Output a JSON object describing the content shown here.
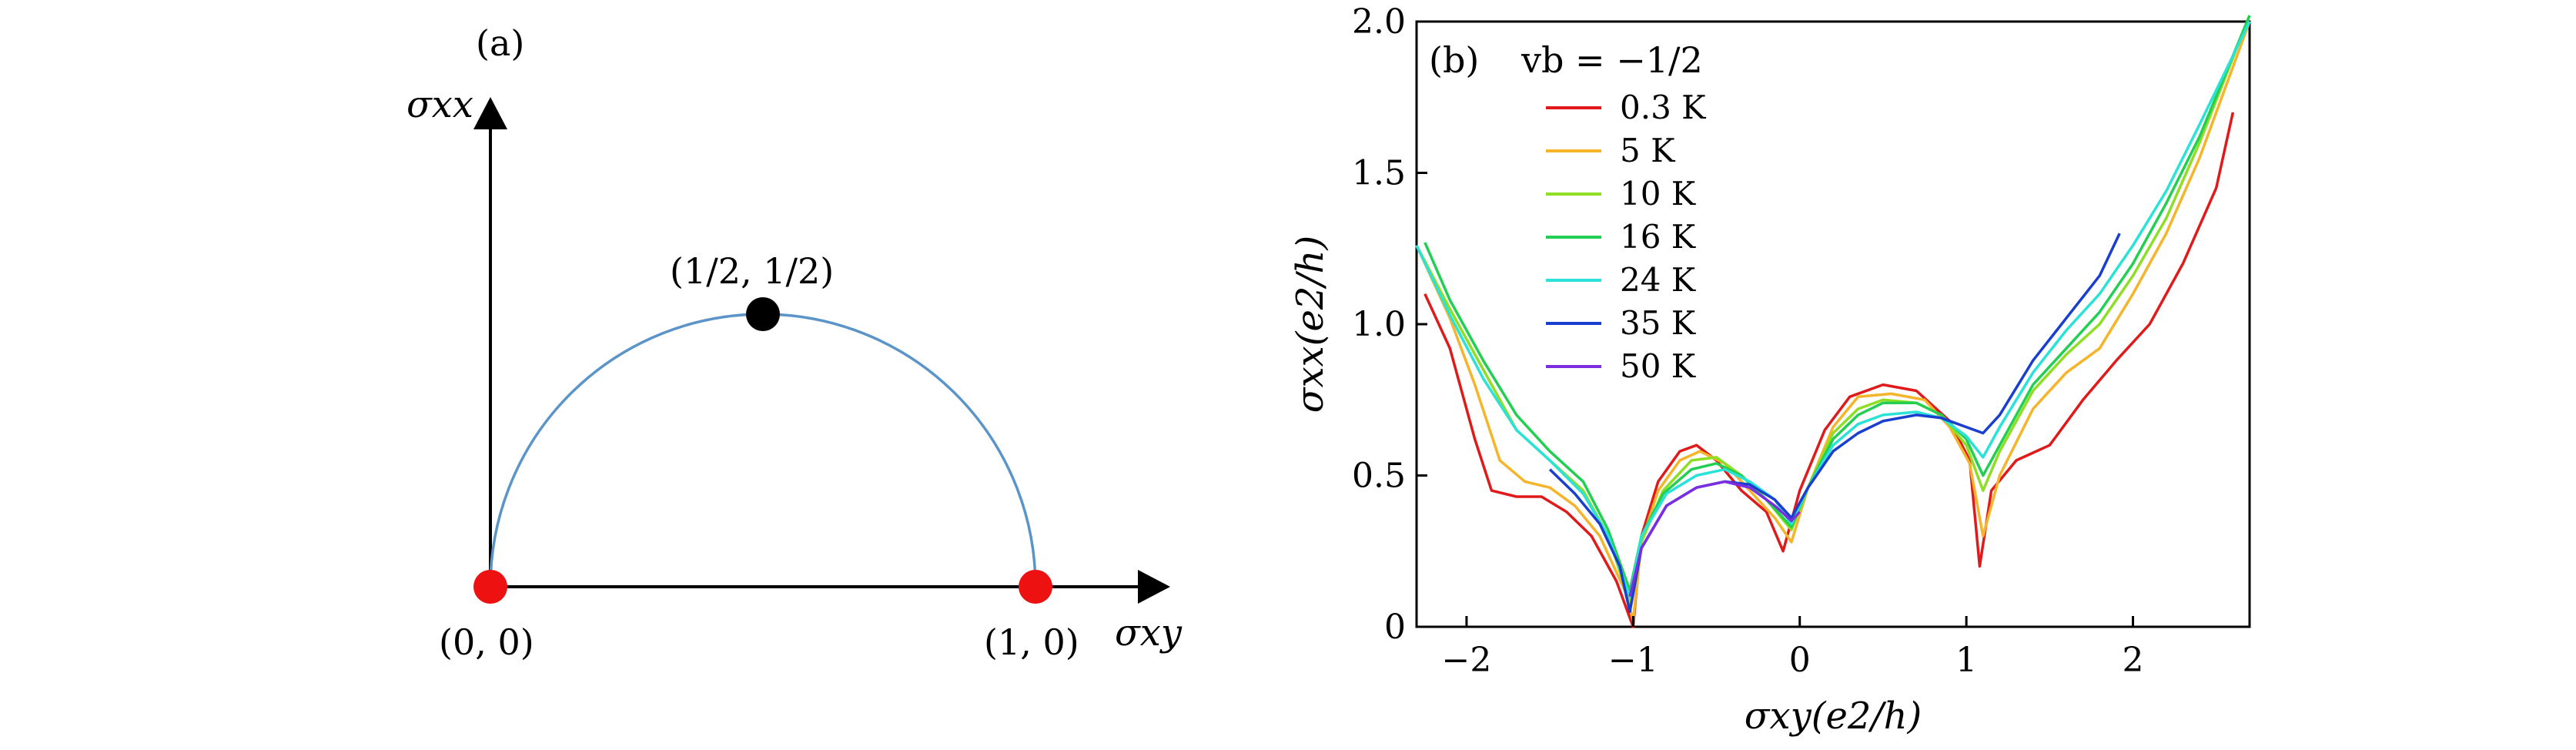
{
  "panel_a": {
    "label": "(a)",
    "y_axis_label": "σxx",
    "x_axis_label": "σxy",
    "points": [
      {
        "label": "(0, 0)",
        "x": 0,
        "y": 0,
        "color": "#ee1111"
      },
      {
        "label": "(1, 0)",
        "x": 1,
        "y": 0,
        "color": "#ee1111"
      },
      {
        "label": "(1/2, 1/2)",
        "x": 0.5,
        "y": 0.5,
        "color": "#000000"
      }
    ],
    "arc_color": "#5a94c8"
  },
  "panel_b": {
    "label": "(b)",
    "filling_label": "vb = −1/2",
    "x_tick_labels": [
      "−2",
      "−1",
      "0",
      "1",
      "2"
    ],
    "y_tick_labels": [
      "0",
      "0.5",
      "1.0",
      "1.5",
      "2.0"
    ]
  },
  "chart_data": {
    "type": "line",
    "xlabel": "σxy(e2/h)",
    "ylabel": "σxx(e2/h)",
    "xlim": [
      -2.3,
      2.7
    ],
    "ylim": [
      0,
      2.0
    ],
    "x_ticks": [
      -2,
      -1,
      0,
      1,
      2
    ],
    "y_ticks": [
      0,
      0.5,
      1.0,
      1.5,
      2.0
    ],
    "legend_position": "top-left",
    "grid": false,
    "series": [
      {
        "name": "0.3 K",
        "color": "#e01a1a",
        "points": [
          [
            -2.25,
            1.1
          ],
          [
            -2.1,
            0.92
          ],
          [
            -1.95,
            0.62
          ],
          [
            -1.85,
            0.45
          ],
          [
            -1.7,
            0.43
          ],
          [
            -1.55,
            0.43
          ],
          [
            -1.4,
            0.38
          ],
          [
            -1.25,
            0.3
          ],
          [
            -1.1,
            0.15
          ],
          [
            -1.0,
            0
          ],
          [
            -0.95,
            0.3
          ],
          [
            -0.85,
            0.48
          ],
          [
            -0.72,
            0.58
          ],
          [
            -0.62,
            0.6
          ],
          [
            -0.5,
            0.55
          ],
          [
            -0.35,
            0.45
          ],
          [
            -0.2,
            0.38
          ],
          [
            -0.1,
            0.25
          ],
          [
            0.0,
            0.45
          ],
          [
            0.15,
            0.65
          ],
          [
            0.3,
            0.76
          ],
          [
            0.5,
            0.8
          ],
          [
            0.7,
            0.78
          ],
          [
            0.9,
            0.68
          ],
          [
            1.02,
            0.55
          ],
          [
            1.08,
            0.2
          ],
          [
            1.15,
            0.45
          ],
          [
            1.3,
            0.55
          ],
          [
            1.5,
            0.6
          ],
          [
            1.7,
            0.75
          ],
          [
            1.9,
            0.88
          ],
          [
            2.1,
            1.0
          ],
          [
            2.3,
            1.2
          ],
          [
            2.5,
            1.45
          ],
          [
            2.6,
            1.7
          ]
        ]
      },
      {
        "name": "5 K",
        "color": "#f5b42a",
        "points": [
          [
            -2.3,
            1.26
          ],
          [
            -2.1,
            1.02
          ],
          [
            -1.95,
            0.8
          ],
          [
            -1.8,
            0.55
          ],
          [
            -1.65,
            0.48
          ],
          [
            -1.5,
            0.46
          ],
          [
            -1.35,
            0.4
          ],
          [
            -1.2,
            0.3
          ],
          [
            -1.05,
            0.12
          ],
          [
            -1.0,
            0.02
          ],
          [
            -0.95,
            0.28
          ],
          [
            -0.85,
            0.45
          ],
          [
            -0.72,
            0.55
          ],
          [
            -0.6,
            0.58
          ],
          [
            -0.45,
            0.54
          ],
          [
            -0.3,
            0.45
          ],
          [
            -0.15,
            0.36
          ],
          [
            -0.05,
            0.28
          ],
          [
            0.05,
            0.46
          ],
          [
            0.2,
            0.66
          ],
          [
            0.35,
            0.76
          ],
          [
            0.55,
            0.77
          ],
          [
            0.75,
            0.75
          ],
          [
            0.9,
            0.66
          ],
          [
            1.02,
            0.54
          ],
          [
            1.1,
            0.3
          ],
          [
            1.2,
            0.5
          ],
          [
            1.4,
            0.72
          ],
          [
            1.6,
            0.84
          ],
          [
            1.8,
            0.92
          ],
          [
            2.0,
            1.1
          ],
          [
            2.2,
            1.3
          ],
          [
            2.4,
            1.55
          ],
          [
            2.6,
            1.85
          ],
          [
            2.7,
            2.0
          ]
        ]
      },
      {
        "name": "10 K",
        "color": "#8ede24",
        "points": [
          [
            -2.3,
            1.26
          ],
          [
            -2.1,
            1.05
          ],
          [
            -1.9,
            0.85
          ],
          [
            -1.7,
            0.65
          ],
          [
            -1.5,
            0.55
          ],
          [
            -1.3,
            0.45
          ],
          [
            -1.15,
            0.3
          ],
          [
            -1.02,
            0.08
          ],
          [
            -0.95,
            0.28
          ],
          [
            -0.82,
            0.45
          ],
          [
            -0.65,
            0.55
          ],
          [
            -0.5,
            0.56
          ],
          [
            -0.35,
            0.5
          ],
          [
            -0.2,
            0.42
          ],
          [
            -0.05,
            0.32
          ],
          [
            0.05,
            0.46
          ],
          [
            0.2,
            0.64
          ],
          [
            0.35,
            0.72
          ],
          [
            0.5,
            0.75
          ],
          [
            0.7,
            0.74
          ],
          [
            0.85,
            0.7
          ],
          [
            1.0,
            0.6
          ],
          [
            1.1,
            0.45
          ],
          [
            1.2,
            0.58
          ],
          [
            1.4,
            0.78
          ],
          [
            1.6,
            0.9
          ],
          [
            1.8,
            1.0
          ],
          [
            2.0,
            1.16
          ],
          [
            2.2,
            1.35
          ],
          [
            2.4,
            1.6
          ],
          [
            2.7,
            2.02
          ]
        ]
      },
      {
        "name": "16 K",
        "color": "#22cf52",
        "points": [
          [
            -2.25,
            1.27
          ],
          [
            -2.1,
            1.08
          ],
          [
            -1.9,
            0.88
          ],
          [
            -1.7,
            0.7
          ],
          [
            -1.5,
            0.58
          ],
          [
            -1.3,
            0.48
          ],
          [
            -1.15,
            0.32
          ],
          [
            -1.02,
            0.12
          ],
          [
            -0.95,
            0.3
          ],
          [
            -0.82,
            0.44
          ],
          [
            -0.65,
            0.52
          ],
          [
            -0.5,
            0.54
          ],
          [
            -0.35,
            0.5
          ],
          [
            -0.2,
            0.42
          ],
          [
            -0.05,
            0.33
          ],
          [
            0.05,
            0.46
          ],
          [
            0.2,
            0.62
          ],
          [
            0.35,
            0.7
          ],
          [
            0.5,
            0.74
          ],
          [
            0.7,
            0.74
          ],
          [
            0.85,
            0.7
          ],
          [
            1.0,
            0.62
          ],
          [
            1.1,
            0.5
          ],
          [
            1.2,
            0.6
          ],
          [
            1.4,
            0.8
          ],
          [
            1.6,
            0.92
          ],
          [
            1.8,
            1.04
          ],
          [
            2.0,
            1.2
          ],
          [
            2.2,
            1.4
          ],
          [
            2.4,
            1.62
          ],
          [
            2.7,
            2.02
          ]
        ]
      },
      {
        "name": "24 K",
        "color": "#2ae2d8",
        "points": [
          [
            -2.3,
            1.26
          ],
          [
            -2.1,
            1.03
          ],
          [
            -1.9,
            0.82
          ],
          [
            -1.7,
            0.65
          ],
          [
            -1.5,
            0.55
          ],
          [
            -1.3,
            0.44
          ],
          [
            -1.15,
            0.3
          ],
          [
            -1.02,
            0.1
          ],
          [
            -0.95,
            0.3
          ],
          [
            -0.8,
            0.44
          ],
          [
            -0.62,
            0.5
          ],
          [
            -0.45,
            0.52
          ],
          [
            -0.3,
            0.48
          ],
          [
            -0.15,
            0.42
          ],
          [
            -0.05,
            0.34
          ],
          [
            0.05,
            0.46
          ],
          [
            0.2,
            0.6
          ],
          [
            0.35,
            0.67
          ],
          [
            0.5,
            0.7
          ],
          [
            0.7,
            0.71
          ],
          [
            0.85,
            0.69
          ],
          [
            1.0,
            0.63
          ],
          [
            1.1,
            0.56
          ],
          [
            1.2,
            0.66
          ],
          [
            1.4,
            0.84
          ],
          [
            1.6,
            0.98
          ],
          [
            1.8,
            1.1
          ],
          [
            2.0,
            1.26
          ],
          [
            2.2,
            1.44
          ],
          [
            2.4,
            1.66
          ],
          [
            2.7,
            2.0
          ]
        ]
      },
      {
        "name": "35 K",
        "color": "#1a3fcf",
        "points": [
          [
            -1.5,
            0.52
          ],
          [
            -1.35,
            0.44
          ],
          [
            -1.2,
            0.34
          ],
          [
            -1.08,
            0.2
          ],
          [
            -1.02,
            0.05
          ],
          [
            -0.95,
            0.26
          ],
          [
            -0.8,
            0.4
          ],
          [
            -0.62,
            0.46
          ],
          [
            -0.45,
            0.48
          ],
          [
            -0.3,
            0.47
          ],
          [
            -0.15,
            0.42
          ],
          [
            -0.05,
            0.36
          ],
          [
            0.05,
            0.46
          ],
          [
            0.2,
            0.58
          ],
          [
            0.35,
            0.64
          ],
          [
            0.5,
            0.68
          ],
          [
            0.7,
            0.7
          ],
          [
            0.85,
            0.69
          ],
          [
            1.0,
            0.66
          ],
          [
            1.1,
            0.64
          ],
          [
            1.2,
            0.7
          ],
          [
            1.4,
            0.88
          ],
          [
            1.6,
            1.02
          ],
          [
            1.8,
            1.16
          ],
          [
            1.92,
            1.3
          ]
        ]
      },
      {
        "name": "50 K",
        "color": "#7a2ee0",
        "points": [
          [
            -1.02,
            0.1
          ],
          [
            -0.95,
            0.26
          ],
          [
            -0.8,
            0.4
          ],
          [
            -0.62,
            0.46
          ],
          [
            -0.45,
            0.48
          ],
          [
            -0.3,
            0.46
          ],
          [
            -0.15,
            0.4
          ],
          [
            -0.05,
            0.35
          ],
          [
            0.0,
            0.38
          ]
        ]
      }
    ]
  }
}
